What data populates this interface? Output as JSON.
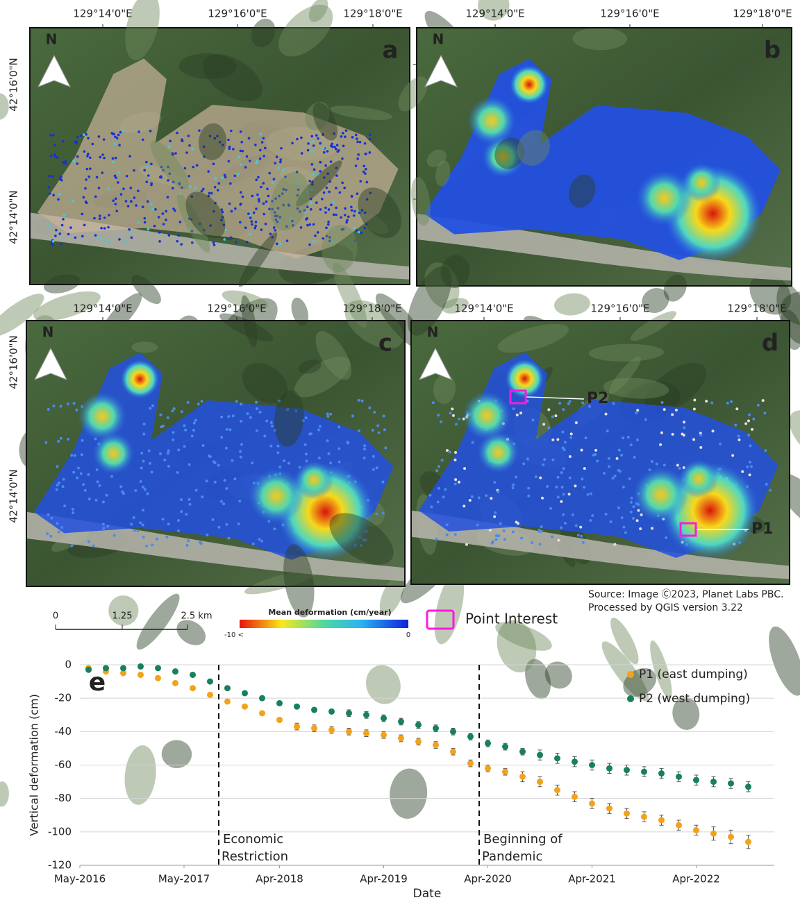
{
  "maps": {
    "north_label": "N",
    "panels": [
      {
        "letter": "a",
        "top_labels": [
          "129°14'0\"E",
          "129°16'0\"E",
          "129°18'0\"E"
        ],
        "left_labels": [
          "42°16'0\"N",
          "42°14'0\"N"
        ]
      },
      {
        "letter": "b",
        "top_labels": [
          "129°14'0\"E",
          "129°16'0\"E",
          "129°18'0\"E"
        ]
      },
      {
        "letter": "c",
        "top_labels": [
          "129°14'0\"E",
          "129°16'0\"E",
          "129°18'0\"E"
        ],
        "left_labels": [
          "42°16'0\"N",
          "42°14'0\"N"
        ]
      },
      {
        "letter": "d",
        "top_labels": [
          "129°14'0\"E",
          "129°16'0\"E",
          "129°18'0\"E"
        ],
        "points": [
          "P2",
          "P1"
        ]
      }
    ]
  },
  "legend": {
    "scale_labels": [
      "0",
      "1.25",
      "2.5 km"
    ],
    "colorbar_title": "Mean deformation (cm/year)",
    "colorbar_labels": [
      "-10 <",
      "0"
    ],
    "point_interest": "Point Interest",
    "source": [
      "Source: Image Ⓒ2023, Planet Labs PBC.",
      "Processed by QGIS version 3.22"
    ]
  },
  "chart_data": {
    "type": "scatter",
    "panel_label": "e",
    "x_label": "Date",
    "y_label": "Vertical deformation (cm)",
    "xlim": [
      "2016-05",
      "2023-01"
    ],
    "xticks": [
      {
        "value": "2016-05",
        "label": "May-2016"
      },
      {
        "value": "2017-05",
        "label": "May-2017"
      },
      {
        "value": "2018-04",
        "label": "Apr-2018"
      },
      {
        "value": "2019-04",
        "label": "Apr-2019"
      },
      {
        "value": "2020-04",
        "label": "Apr-2020"
      },
      {
        "value": "2021-04",
        "label": "Apr-2021"
      },
      {
        "value": "2022-04",
        "label": "Apr-2022"
      }
    ],
    "ylim": [
      -120,
      0
    ],
    "yticks": [
      -120,
      -100,
      -80,
      -60,
      -40,
      -20,
      0
    ],
    "grid": true,
    "x": [
      "2016-06",
      "2016-08",
      "2016-10",
      "2016-12",
      "2017-02",
      "2017-04",
      "2017-06",
      "2017-08",
      "2017-10",
      "2017-12",
      "2018-02",
      "2018-04",
      "2018-06",
      "2018-08",
      "2018-10",
      "2018-12",
      "2019-02",
      "2019-04",
      "2019-06",
      "2019-08",
      "2019-10",
      "2019-12",
      "2020-02",
      "2020-04",
      "2020-06",
      "2020-08",
      "2020-10",
      "2020-12",
      "2021-02",
      "2021-04",
      "2021-06",
      "2021-08",
      "2021-10",
      "2021-12",
      "2022-02",
      "2022-04",
      "2022-06",
      "2022-08",
      "2022-10"
    ],
    "series": [
      {
        "name": "P1 (east dumping)",
        "color": "#f2a21b",
        "values": [
          -2,
          -4,
          -5,
          -6,
          -8,
          -11,
          -14,
          -18,
          -22,
          -25,
          -29,
          -33,
          -37,
          -38,
          -39,
          -40,
          -41,
          -42,
          -44,
          -46,
          -48,
          -52,
          -59,
          -62,
          -64,
          -67,
          -70,
          -75,
          -79,
          -83,
          -86,
          -89,
          -91,
          -93,
          -96,
          -99,
          -101,
          -103,
          -106
        ],
        "errors": [
          1,
          1,
          1,
          1,
          1,
          1,
          1,
          1,
          1,
          1,
          1,
          1,
          2,
          2,
          2,
          2,
          2,
          2,
          2,
          2,
          2,
          2,
          2,
          2,
          2,
          3,
          3,
          3,
          3,
          3,
          3,
          3,
          3,
          3,
          3,
          3,
          4,
          4,
          4
        ]
      },
      {
        "name": "P2 (west dumping)",
        "color": "#17805c",
        "values": [
          -3,
          -2,
          -2,
          -1,
          -2,
          -4,
          -6,
          -10,
          -14,
          -17,
          -20,
          -23,
          -25,
          -27,
          -28,
          -29,
          -30,
          -32,
          -34,
          -36,
          -38,
          -40,
          -43,
          -47,
          -49,
          -52,
          -54,
          -56,
          -58,
          -60,
          -62,
          -63,
          -64,
          -65,
          -67,
          -69,
          -70,
          -71,
          -73
        ],
        "errors": [
          1,
          1,
          1,
          1,
          1,
          1,
          1,
          1,
          1,
          1,
          1,
          1,
          1,
          1,
          1,
          2,
          2,
          2,
          2,
          2,
          2,
          2,
          2,
          2,
          2,
          2,
          3,
          3,
          3,
          3,
          3,
          3,
          3,
          3,
          3,
          3,
          3,
          3,
          3
        ]
      }
    ],
    "vlines": [
      {
        "x": "2017-09",
        "label": [
          "Economic",
          "Restriction"
        ]
      },
      {
        "x": "2020-03",
        "label": [
          "Beginning of",
          "Pandemic"
        ]
      }
    ]
  }
}
